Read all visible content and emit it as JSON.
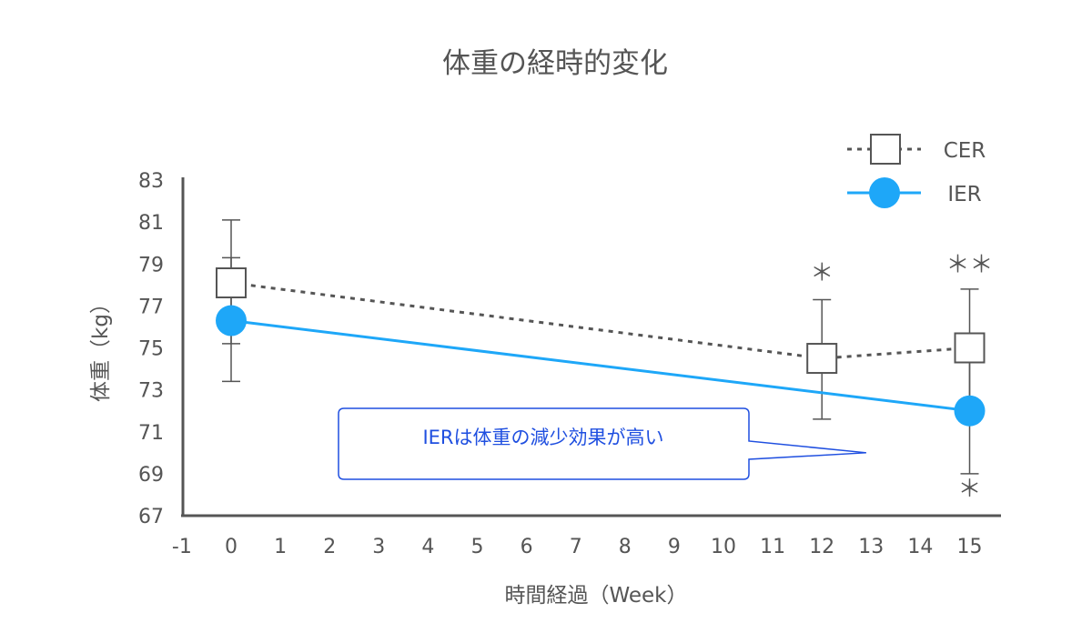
{
  "chart_data": {
    "type": "line",
    "title": "体重の経時的変化",
    "xlabel": "時間経過（Week）",
    "ylabel": "体重（kg）",
    "xlim": [
      -1,
      15.5
    ],
    "ylim": [
      67,
      83
    ],
    "xticks": [
      "-1",
      "0",
      "1",
      "2",
      "3",
      "4",
      "5",
      "6",
      "7",
      "8",
      "9",
      "10",
      "11",
      "12",
      "13",
      "14",
      "15"
    ],
    "yticks": [
      "67",
      "69",
      "71",
      "73",
      "75",
      "77",
      "79",
      "81",
      "83"
    ],
    "legend_position": "top-right",
    "series": [
      {
        "name": "CER",
        "color": "#555555",
        "line_style": "dotted",
        "marker": "square-open",
        "points": [
          {
            "x": 0,
            "y": 78.1,
            "err_low": 75.2,
            "err_high": 81.1
          },
          {
            "x": 12,
            "y": 74.5,
            "err_low": 71.6,
            "err_high": 77.3
          },
          {
            "x": 15,
            "y": 75.0,
            "err_low": 72.2,
            "err_high": 77.8
          }
        ]
      },
      {
        "name": "IER",
        "color": "#1ea7f8",
        "line_style": "solid",
        "marker": "circle-filled",
        "points": [
          {
            "x": 0,
            "y": 76.3,
            "err_low": 73.4,
            "err_high": 79.3
          },
          {
            "x": 15,
            "y": 72.0,
            "err_low": 69.0,
            "err_high": 75.0
          }
        ]
      }
    ],
    "significance_marks": [
      {
        "x": 12,
        "y": 78.2,
        "text": "＊"
      },
      {
        "x": 15,
        "y": 78.6,
        "text": "＊＊"
      },
      {
        "x": 15,
        "y": 67.9,
        "text": "＊"
      }
    ],
    "annotation": {
      "text": "IERは体重の減少効果が高い",
      "color": "#1f4fe0",
      "pointer_x": 12.9,
      "pointer_y": 70.0
    }
  }
}
